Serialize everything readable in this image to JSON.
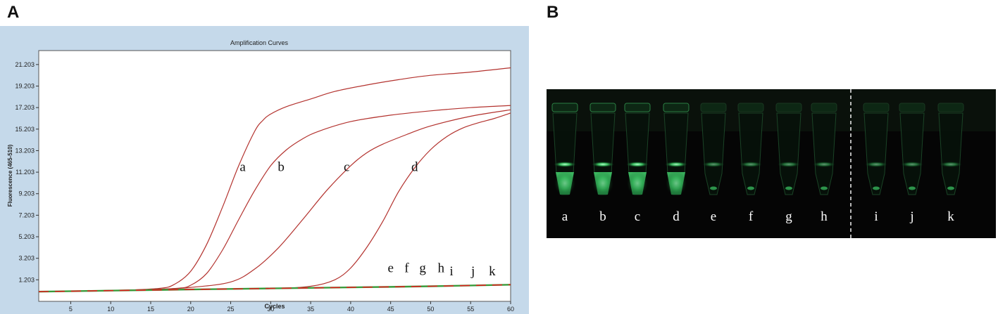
{
  "panels": {
    "a_label": "A",
    "b_label": "B"
  },
  "chart_data": {
    "type": "line",
    "title": "Amplification Curves",
    "xlabel": "Cycles",
    "ylabel": "Fluorescence (465-510)",
    "xlim": [
      1,
      60
    ],
    "ylim": [
      -0.8,
      22.5
    ],
    "xticks": [
      5,
      10,
      15,
      20,
      25,
      30,
      35,
      40,
      45,
      50,
      55,
      60
    ],
    "yticks": [
      1.203,
      3.203,
      5.203,
      7.203,
      9.203,
      11.203,
      13.203,
      15.203,
      17.203,
      19.203,
      21.203
    ],
    "ytick_labels": [
      "1.203",
      "3.203",
      "5.203",
      "7.203",
      "9.203",
      "11.203",
      "13.203",
      "15.203",
      "17.203",
      "19.203",
      "21.203"
    ],
    "grid": false,
    "colors": {
      "positive": "#b3322e",
      "baseline": "#e02020",
      "baseline_alt": "#3a9a3a",
      "frame_bg": "#c5d9ea"
    },
    "series": [
      {
        "name": "a",
        "x": [
          1,
          10,
          16,
          18,
          20,
          22,
          24,
          26,
          28,
          29,
          30,
          32,
          35,
          38,
          42,
          46,
          50,
          55,
          60
        ],
        "y": [
          0.1,
          0.2,
          0.4,
          0.8,
          2.0,
          4.5,
          8.0,
          11.8,
          15.0,
          16.0,
          16.6,
          17.3,
          18.0,
          18.7,
          19.3,
          19.8,
          20.2,
          20.5,
          20.9
        ]
      },
      {
        "name": "b",
        "x": [
          1,
          10,
          18,
          20,
          22,
          24,
          26,
          28,
          30,
          32,
          34,
          36,
          40,
          45,
          50,
          55,
          60
        ],
        "y": [
          0.1,
          0.2,
          0.4,
          0.7,
          1.8,
          4.0,
          6.8,
          9.5,
          11.8,
          13.3,
          14.3,
          15.0,
          15.9,
          16.5,
          16.9,
          17.2,
          17.4
        ]
      },
      {
        "name": "c",
        "x": [
          1,
          15,
          20,
          25,
          28,
          31,
          34,
          37,
          40,
          42,
          44,
          47,
          50,
          55,
          60
        ],
        "y": [
          0.1,
          0.3,
          0.5,
          1.0,
          2.2,
          4.2,
          6.8,
          9.5,
          11.8,
          13.0,
          13.8,
          14.7,
          15.5,
          16.4,
          17.0
        ]
      },
      {
        "name": "d",
        "x": [
          1,
          20,
          30,
          35,
          38,
          40,
          42,
          44,
          46,
          48,
          50,
          52,
          54,
          56,
          58,
          60
        ],
        "y": [
          0.1,
          0.3,
          0.4,
          0.6,
          1.2,
          2.3,
          4.2,
          6.6,
          9.4,
          11.6,
          13.3,
          14.5,
          15.3,
          15.8,
          16.2,
          16.7
        ]
      },
      {
        "name": "e-k",
        "x": [
          1,
          10,
          20,
          30,
          40,
          50,
          60
        ],
        "y": [
          0.1,
          0.2,
          0.3,
          0.4,
          0.5,
          0.6,
          0.75
        ]
      }
    ],
    "annotations": [
      {
        "text": "a",
        "x": 26.5,
        "y": 11.3
      },
      {
        "text": "b",
        "x": 31.3,
        "y": 11.3
      },
      {
        "text": "c",
        "x": 39.5,
        "y": 11.3
      },
      {
        "text": "d",
        "x": 48.0,
        "y": 11.3
      },
      {
        "text": "e",
        "x": 45.0,
        "y": 1.9
      },
      {
        "text": "f",
        "x": 47.0,
        "y": 1.9
      },
      {
        "text": "g",
        "x": 49.0,
        "y": 1.9
      },
      {
        "text": "h",
        "x": 51.3,
        "y": 1.9
      },
      {
        "text": "i",
        "x": 52.6,
        "y": 1.6
      },
      {
        "text": "j",
        "x": 55.3,
        "y": 1.6
      },
      {
        "text": "k",
        "x": 57.7,
        "y": 1.6
      }
    ]
  },
  "photo": {
    "tube_labels": [
      "a",
      "b",
      "c",
      "d",
      "e",
      "f",
      "g",
      "h",
      "i",
      "j",
      "k"
    ],
    "glow_intensity": [
      1.0,
      1.0,
      1.0,
      0.95,
      0.1,
      0.1,
      0.1,
      0.1,
      0.1,
      0.1,
      0.1
    ],
    "glow_color": "#3dcc66"
  }
}
